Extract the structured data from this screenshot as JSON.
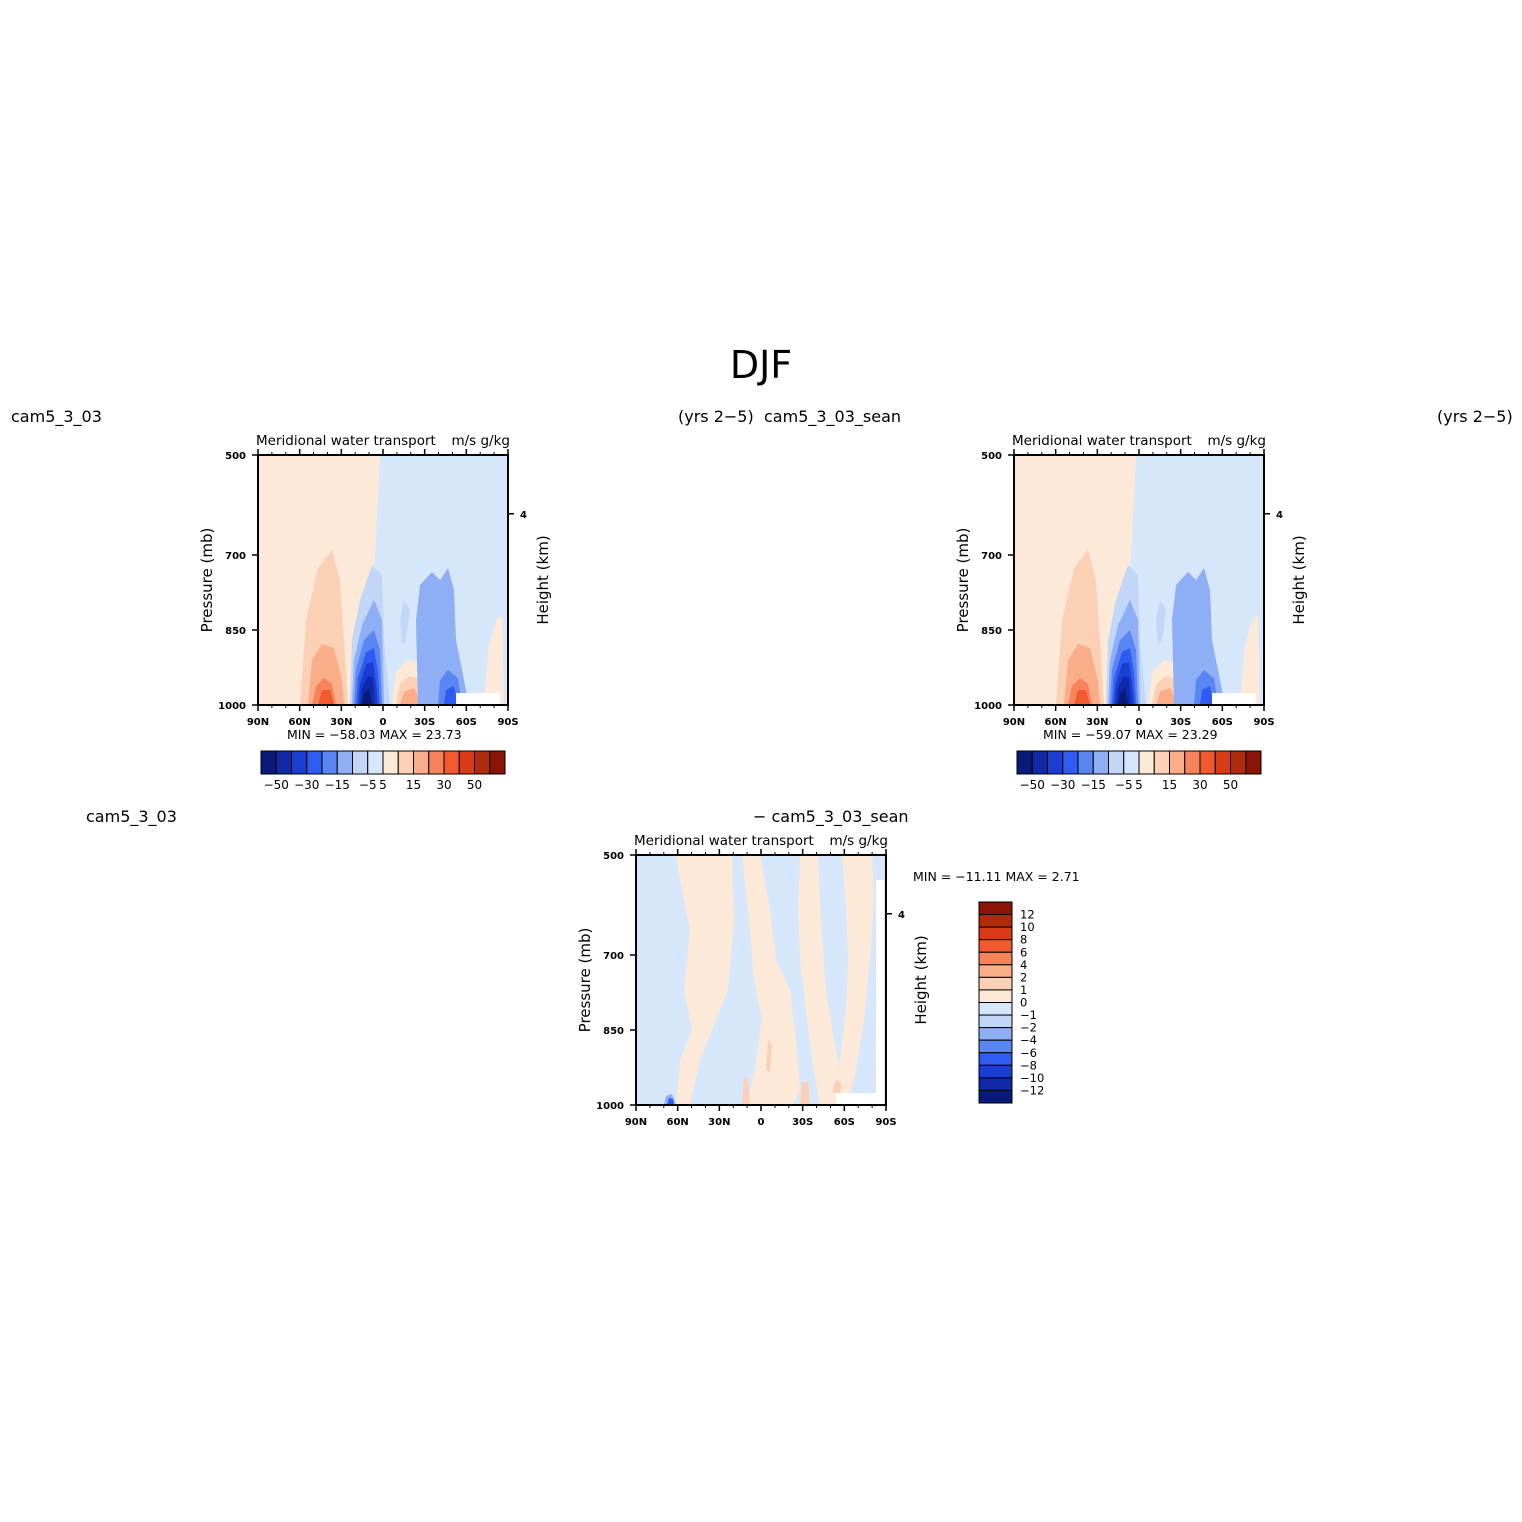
{
  "figure": {
    "title": "DJF"
  },
  "panels": {
    "left": {
      "case": "cam5_3_03",
      "years": "(yrs 2−5)",
      "variable": "Meridional water transport",
      "units": "m/s g/kg",
      "ylabel_left": "Pressure (mb)",
      "ylabel_right": "Height (km)",
      "stats": "MIN = −58.03   MAX =   23.73"
    },
    "right": {
      "case": "cam5_3_03_sean",
      "years": "(yrs 2−5)",
      "variable": "Meridional water transport",
      "units": "m/s g/kg",
      "ylabel_left": "Pressure (mb)",
      "ylabel_right": "Height (km)",
      "stats": "MIN = −59.07   MAX =   23.29"
    },
    "diff": {
      "case_a": "cam5_3_03",
      "case_b": "− cam5_3_03_sean",
      "variable": "Meridional water transport",
      "units": "m/s g/kg",
      "ylabel_left": "Pressure (mb)",
      "ylabel_right": "Height (km)",
      "stats": "MIN = −11.11   MAX =     2.71"
    }
  },
  "chart_data": [
    {
      "type": "heatmap",
      "panel": "cam5_3_03 (yrs 2−5)",
      "x_ticks": [
        "90N",
        "60N",
        "30N",
        "0",
        "30S",
        "60S",
        "90S"
      ],
      "y_ticks": [
        "500",
        "700",
        "850",
        "1000"
      ],
      "y_right_ticks": [
        "4"
      ],
      "xlim": [
        -90,
        90
      ],
      "ylim": [
        1000,
        500
      ],
      "min": -58.03,
      "max": 23.73,
      "colorbar_labels": [
        "−50",
        "−30",
        "−15",
        "−5",
        "5",
        "15",
        "30",
        "50"
      ],
      "colorbar_levels": [
        -50,
        -40,
        -30,
        -20,
        -15,
        -10,
        -5,
        0,
        5,
        10,
        15,
        20,
        30,
        40,
        50
      ]
    },
    {
      "type": "heatmap",
      "panel": "cam5_3_03_sean (yrs 2−5)",
      "x_ticks": [
        "90N",
        "60N",
        "30N",
        "0",
        "30S",
        "60S",
        "90S"
      ],
      "y_ticks": [
        "500",
        "700",
        "850",
        "1000"
      ],
      "y_right_ticks": [
        "4"
      ],
      "xlim": [
        -90,
        90
      ],
      "ylim": [
        1000,
        500
      ],
      "min": -59.07,
      "max": 23.29,
      "colorbar_labels": [
        "−50",
        "−30",
        "−15",
        "−5",
        "5",
        "15",
        "30",
        "50"
      ],
      "colorbar_levels": [
        -50,
        -40,
        -30,
        -20,
        -15,
        -10,
        -5,
        0,
        5,
        10,
        15,
        20,
        30,
        40,
        50
      ]
    },
    {
      "type": "heatmap",
      "panel": "cam5_3_03 − cam5_3_03_sean",
      "x_ticks": [
        "90N",
        "60N",
        "30N",
        "0",
        "30S",
        "60S",
        "90S"
      ],
      "y_ticks": [
        "500",
        "700",
        "850",
        "1000"
      ],
      "y_right_ticks": [
        "4"
      ],
      "xlim": [
        -90,
        90
      ],
      "ylim": [
        1000,
        500
      ],
      "min": -11.11,
      "max": 2.71,
      "colorbar_labels": [
        "12",
        "10",
        "8",
        "6",
        "4",
        "2",
        "1",
        "0",
        "−1",
        "−2",
        "−4",
        "−6",
        "−8",
        "−10",
        "−12"
      ],
      "colorbar_levels": [
        -12,
        -10,
        -8,
        -6,
        -4,
        -2,
        -1,
        0,
        1,
        2,
        4,
        6,
        8,
        10,
        12
      ]
    }
  ],
  "colors": {
    "palette": [
      "#0a1a7a",
      "#1029a8",
      "#1a3fd0",
      "#2e5cf0",
      "#5a86f3",
      "#8eaef5",
      "#c2d6f8",
      "#d7e7fb",
      "#fde9d8",
      "#fbd0b5",
      "#f9ad88",
      "#f6835c",
      "#f2592f",
      "#d83b15",
      "#b02a0c",
      "#8a1405"
    ]
  }
}
